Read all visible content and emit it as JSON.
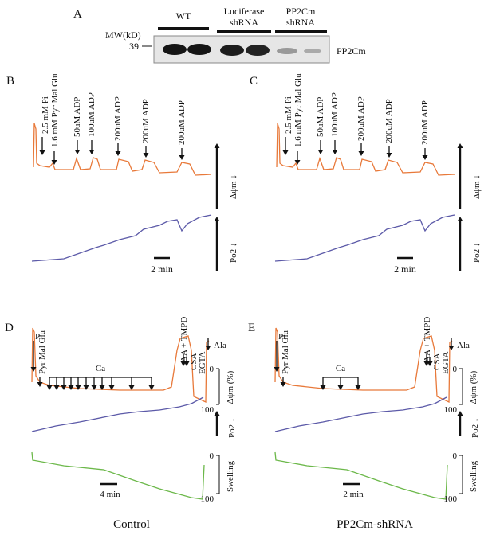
{
  "panel_a": {
    "label": "A",
    "mw_label": "MW(kD)",
    "lanes": [
      [
        "WT"
      ],
      [
        "Luciferase",
        "shRNA"
      ],
      [
        "PP2Cm",
        "shRNA"
      ]
    ],
    "marker": "39",
    "band_label": "PP2Cm"
  },
  "panel_b": {
    "label": "B",
    "annotations": [
      "2.5 mM Pi",
      "1.6 mM Pyr Mal Glu",
      "50uM ADP",
      "100uM ADP",
      "200uM ADP",
      "200uM ADP",
      "200uM ADP"
    ],
    "trace_labels": [
      "Δψm ↓",
      "Po2 ↓"
    ],
    "scale_bar": "2 min"
  },
  "panel_c": {
    "label": "C",
    "annotations": [
      "2.5 mM Pi",
      "1.6 mM Pyr Mal Glu",
      "50uM ADP",
      "100uM ADP",
      "200uM ADP",
      "200uM ADP",
      "200uM ADP"
    ],
    "trace_labels": [
      "Δψm ↓",
      "Po2 ↓"
    ],
    "scale_bar": "2 min"
  },
  "panel_d": {
    "label": "D",
    "annotations": [
      "Pi",
      "Pyr Mal Glu",
      "Ca",
      "AA + TMPD",
      "CSA",
      "EGTA",
      "Ala"
    ],
    "membrane_axis": {
      "top": "0",
      "label": "Δψm (%)",
      "bottom": "100"
    },
    "oxygen_label": "Po2 ↓",
    "swelling_axis": {
      "top": "0",
      "label": "Swelling",
      "bottom": "100"
    },
    "scale_bar": "4 min",
    "caption": "Control"
  },
  "panel_e": {
    "label": "E",
    "annotations": [
      "Pi",
      "Pyr Mal Glu",
      "Ca",
      "AA + TMPD",
      "CSA",
      "EGTA",
      "Ala"
    ],
    "membrane_axis": {
      "top": "0",
      "label": "Δψm (%)",
      "bottom": "100"
    },
    "oxygen_label": "Po2 ↓",
    "swelling_axis": {
      "top": "0",
      "label": "Swelling",
      "bottom": "100"
    },
    "scale_bar": "2 min",
    "caption": "PP2Cm-shRNA"
  }
}
